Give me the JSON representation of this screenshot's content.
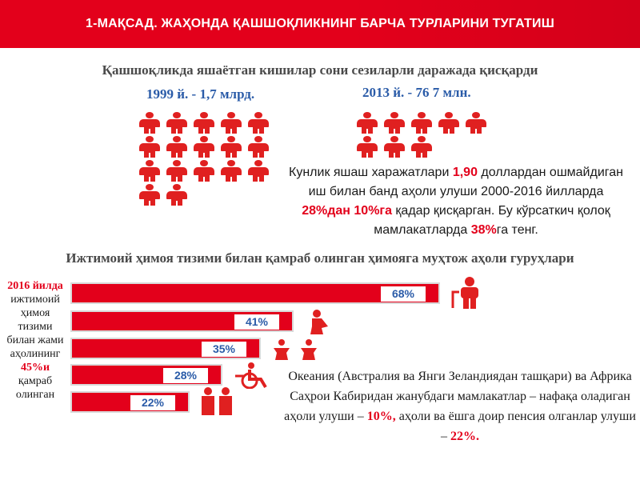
{
  "banner": {
    "title": "1-МАҚСАД. ЖАҲОНДА ҚАШШОҚЛИКНИНГ БАРЧА ТУРЛАРИНИ ТУГАТИШ"
  },
  "subtitle": "Қашшоқликда яшаётган кишилар сони сезиларли даражада қисқарди",
  "year_left": "1999 й. - 1,7 млрд.",
  "year_right": "2013 й. - 76 7 млн.",
  "people_left_count": 17,
  "people_right_count": 8,
  "paragraph1": {
    "p1": "Кунлик яшаш харажатлари ",
    "v1": "1,90",
    "p2": " доллардан ошмайдиган иш билан банд аҳоли улуши 2000-2016 йилларда ",
    "v2": "28%дан 10%га",
    "p3": " қадар қисқарган. Бу кўрсаткич қолоқ мамлакатларда ",
    "v3": "38%",
    "p4": "га тенг."
  },
  "section2_title": "Ижтимоий ҳимоя тизими билан қамраб олинган ҳимояга муҳтож аҳоли гуруҳлари",
  "side_text": {
    "red1": "2016 йилда",
    "black1": "ижтимоий ҳимоя тизими билан жами аҳолининг",
    "red2": "45%и",
    "black2": "қамраб олинган"
  },
  "bars": [
    {
      "label": "68%",
      "value": 68,
      "icon": "elderly-person-icon"
    },
    {
      "label": "41%",
      "value": 41,
      "icon": "pregnant-woman-icon"
    },
    {
      "label": "35%",
      "value": 35,
      "icon": "children-icon"
    },
    {
      "label": "28%",
      "value": 28,
      "icon": "wheelchair-icon"
    },
    {
      "label": "22%",
      "value": 22,
      "icon": "unemployed-people-icon"
    }
  ],
  "paragraph2": {
    "p1": "Океания (Австралия ва Янги Зеландиядан ташқари) ва Африка Саҳрои Кабиридан жанубдаги мамлакатлар – нафақа оладиган аҳоли улуши – ",
    "v1": "10%,",
    "p2": " аҳоли ва ёшга доир пенсия олганлар улуши – ",
    "v2": "22%."
  },
  "colors": {
    "accent_red": "#e3001b",
    "label_blue": "#2a5ba8",
    "text_gray": "#4a4a4a"
  }
}
